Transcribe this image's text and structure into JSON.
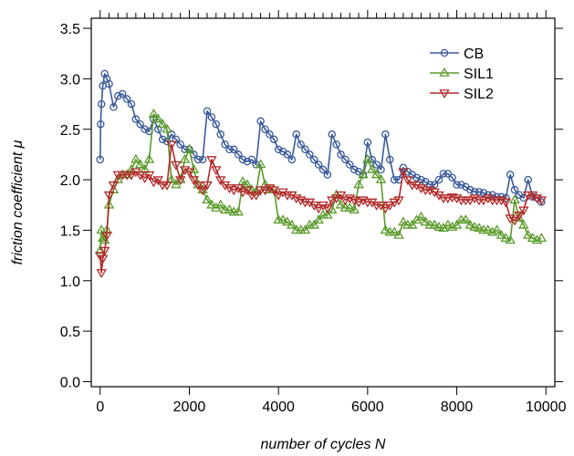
{
  "chart_data": {
    "type": "line",
    "xlabel": "number of cycles N",
    "ylabel": "friction coefficient  μ",
    "xlim": [
      -200,
      10200
    ],
    "ylim": [
      -0.05,
      3.6
    ],
    "xticks": [
      "0",
      "2000",
      "4000",
      "6000",
      "8000",
      "10000"
    ],
    "yticks": [
      "0.0",
      "0.5",
      "1.0",
      "1.5",
      "2.0",
      "2.5",
      "3.0",
      "3.5"
    ],
    "grid": false,
    "legend_position": "top-right",
    "series": [
      {
        "name": "CB",
        "color": "#3a5a9a",
        "marker": "circle",
        "points": [
          [
            0,
            2.2
          ],
          [
            10,
            2.55
          ],
          [
            30,
            2.75
          ],
          [
            60,
            2.93
          ],
          [
            100,
            3.05
          ],
          [
            150,
            3.0
          ],
          [
            200,
            2.95
          ],
          [
            300,
            2.72
          ],
          [
            400,
            2.83
          ],
          [
            500,
            2.85
          ],
          [
            600,
            2.8
          ],
          [
            700,
            2.75
          ],
          [
            800,
            2.6
          ],
          [
            900,
            2.55
          ],
          [
            1000,
            2.5
          ],
          [
            1100,
            2.48
          ],
          [
            1200,
            2.6
          ],
          [
            1300,
            2.5
          ],
          [
            1400,
            2.4
          ],
          [
            1500,
            2.38
          ],
          [
            1600,
            2.45
          ],
          [
            1700,
            2.4
          ],
          [
            1800,
            2.35
          ],
          [
            1900,
            2.3
          ],
          [
            2000,
            2.3
          ],
          [
            2100,
            2.25
          ],
          [
            2200,
            2.2
          ],
          [
            2300,
            2.2
          ],
          [
            2400,
            2.68
          ],
          [
            2500,
            2.62
          ],
          [
            2600,
            2.55
          ],
          [
            2700,
            2.45
          ],
          [
            2800,
            2.35
          ],
          [
            2900,
            2.3
          ],
          [
            3000,
            2.3
          ],
          [
            3100,
            2.25
          ],
          [
            3200,
            2.2
          ],
          [
            3300,
            2.18
          ],
          [
            3400,
            2.2
          ],
          [
            3500,
            2.15
          ],
          [
            3600,
            2.58
          ],
          [
            3700,
            2.5
          ],
          [
            3800,
            2.45
          ],
          [
            3900,
            2.4
          ],
          [
            4000,
            2.3
          ],
          [
            4100,
            2.28
          ],
          [
            4200,
            2.25
          ],
          [
            4300,
            2.2
          ],
          [
            4400,
            2.45
          ],
          [
            4500,
            2.35
          ],
          [
            4600,
            2.3
          ],
          [
            4700,
            2.25
          ],
          [
            4800,
            2.2
          ],
          [
            4900,
            2.15
          ],
          [
            5000,
            2.1
          ],
          [
            5100,
            2.05
          ],
          [
            5200,
            2.45
          ],
          [
            5300,
            2.35
          ],
          [
            5400,
            2.25
          ],
          [
            5500,
            2.2
          ],
          [
            5600,
            2.15
          ],
          [
            5700,
            2.1
          ],
          [
            5800,
            2.08
          ],
          [
            5900,
            2.05
          ],
          [
            6000,
            2.37
          ],
          [
            6100,
            2.2
          ],
          [
            6200,
            2.15
          ],
          [
            6300,
            2.1
          ],
          [
            6400,
            2.45
          ],
          [
            6500,
            2.2
          ],
          [
            6600,
            2.0
          ],
          [
            6700,
            2.0
          ],
          [
            6800,
            2.12
          ],
          [
            6900,
            2.08
          ],
          [
            7000,
            2.05
          ],
          [
            7100,
            2.02
          ],
          [
            7200,
            2.0
          ],
          [
            7300,
            1.98
          ],
          [
            7400,
            1.95
          ],
          [
            7500,
            1.95
          ],
          [
            7600,
            2.0
          ],
          [
            7700,
            2.06
          ],
          [
            7800,
            2.06
          ],
          [
            7900,
            2.02
          ],
          [
            8000,
            1.95
          ],
          [
            8100,
            1.95
          ],
          [
            8200,
            1.93
          ],
          [
            8300,
            1.9
          ],
          [
            8400,
            1.88
          ],
          [
            8500,
            1.88
          ],
          [
            8600,
            1.87
          ],
          [
            8700,
            1.85
          ],
          [
            8800,
            1.85
          ],
          [
            8900,
            1.83
          ],
          [
            9000,
            1.83
          ],
          [
            9100,
            1.82
          ],
          [
            9200,
            2.05
          ],
          [
            9300,
            1.9
          ],
          [
            9400,
            1.85
          ],
          [
            9500,
            1.82
          ],
          [
            9600,
            2.0
          ],
          [
            9700,
            1.83
          ],
          [
            9800,
            1.82
          ],
          [
            9900,
            1.78
          ]
        ]
      },
      {
        "name": "SIL1",
        "color": "#5a9a2a",
        "marker": "triangle-up",
        "points": [
          [
            0,
            1.3
          ],
          [
            30,
            1.5
          ],
          [
            60,
            1.42
          ],
          [
            100,
            1.4
          ],
          [
            150,
            1.5
          ],
          [
            200,
            1.75
          ],
          [
            300,
            1.9
          ],
          [
            400,
            2.0
          ],
          [
            500,
            2.05
          ],
          [
            600,
            2.05
          ],
          [
            700,
            2.1
          ],
          [
            800,
            2.2
          ],
          [
            900,
            2.15
          ],
          [
            1000,
            2.1
          ],
          [
            1100,
            2.2
          ],
          [
            1200,
            2.65
          ],
          [
            1300,
            2.6
          ],
          [
            1400,
            2.55
          ],
          [
            1500,
            2.5
          ],
          [
            1600,
            2.0
          ],
          [
            1700,
            1.95
          ],
          [
            1800,
            2.0
          ],
          [
            1900,
            2.2
          ],
          [
            2000,
            2.3
          ],
          [
            2100,
            2.1
          ],
          [
            2200,
            1.95
          ],
          [
            2300,
            1.9
          ],
          [
            2400,
            1.8
          ],
          [
            2500,
            1.75
          ],
          [
            2600,
            1.72
          ],
          [
            2700,
            1.75
          ],
          [
            2800,
            1.7
          ],
          [
            2900,
            1.7
          ],
          [
            3000,
            1.68
          ],
          [
            3100,
            1.68
          ],
          [
            3200,
            1.98
          ],
          [
            3300,
            1.95
          ],
          [
            3400,
            1.9
          ],
          [
            3500,
            1.88
          ],
          [
            3600,
            2.15
          ],
          [
            3700,
            1.95
          ],
          [
            3800,
            1.9
          ],
          [
            3900,
            1.9
          ],
          [
            4000,
            1.6
          ],
          [
            4100,
            1.6
          ],
          [
            4200,
            1.58
          ],
          [
            4300,
            1.55
          ],
          [
            4400,
            1.5
          ],
          [
            4500,
            1.5
          ],
          [
            4600,
            1.5
          ],
          [
            4700,
            1.55
          ],
          [
            4800,
            1.55
          ],
          [
            4900,
            1.6
          ],
          [
            5000,
            1.65
          ],
          [
            5100,
            1.65
          ],
          [
            5200,
            1.7
          ],
          [
            5300,
            1.85
          ],
          [
            5400,
            1.75
          ],
          [
            5500,
            1.72
          ],
          [
            5600,
            1.72
          ],
          [
            5700,
            1.7
          ],
          [
            5800,
            1.95
          ],
          [
            5900,
            2.05
          ],
          [
            6000,
            2.2
          ],
          [
            6100,
            2.1
          ],
          [
            6200,
            2.05
          ],
          [
            6300,
            2.0
          ],
          [
            6400,
            1.5
          ],
          [
            6500,
            1.48
          ],
          [
            6600,
            1.48
          ],
          [
            6700,
            1.45
          ],
          [
            6800,
            1.58
          ],
          [
            6900,
            1.55
          ],
          [
            7000,
            1.55
          ],
          [
            7100,
            1.6
          ],
          [
            7200,
            1.63
          ],
          [
            7300,
            1.58
          ],
          [
            7400,
            1.55
          ],
          [
            7500,
            1.55
          ],
          [
            7600,
            1.53
          ],
          [
            7700,
            1.52
          ],
          [
            7800,
            1.55
          ],
          [
            7900,
            1.53
          ],
          [
            8000,
            1.55
          ],
          [
            8100,
            1.6
          ],
          [
            8200,
            1.6
          ],
          [
            8300,
            1.55
          ],
          [
            8400,
            1.53
          ],
          [
            8500,
            1.52
          ],
          [
            8600,
            1.5
          ],
          [
            8700,
            1.5
          ],
          [
            8800,
            1.48
          ],
          [
            8900,
            1.5
          ],
          [
            9000,
            1.45
          ],
          [
            9100,
            1.42
          ],
          [
            9200,
            1.4
          ],
          [
            9300,
            1.8
          ],
          [
            9400,
            1.62
          ],
          [
            9500,
            1.55
          ],
          [
            9600,
            1.45
          ],
          [
            9700,
            1.42
          ],
          [
            9800,
            1.4
          ],
          [
            9900,
            1.42
          ]
        ]
      },
      {
        "name": "SIL2",
        "color": "#b22a2a",
        "marker": "triangle-down",
        "points": [
          [
            0,
            1.25
          ],
          [
            30,
            1.08
          ],
          [
            60,
            1.22
          ],
          [
            100,
            1.3
          ],
          [
            150,
            1.45
          ],
          [
            200,
            1.85
          ],
          [
            300,
            1.95
          ],
          [
            400,
            2.05
          ],
          [
            500,
            2.05
          ],
          [
            600,
            2.05
          ],
          [
            700,
            2.05
          ],
          [
            800,
            2.08
          ],
          [
            900,
            2.05
          ],
          [
            1000,
            2.02
          ],
          [
            1100,
            2.05
          ],
          [
            1200,
            1.98
          ],
          [
            1300,
            2.0
          ],
          [
            1400,
            1.95
          ],
          [
            1500,
            1.95
          ],
          [
            1600,
            2.35
          ],
          [
            1700,
            2.15
          ],
          [
            1800,
            2.0
          ],
          [
            1900,
            2.1
          ],
          [
            2000,
            2.08
          ],
          [
            2100,
            2.0
          ],
          [
            2200,
            1.95
          ],
          [
            2300,
            1.9
          ],
          [
            2400,
            1.95
          ],
          [
            2500,
            2.2
          ],
          [
            2600,
            2.1
          ],
          [
            2700,
            2.0
          ],
          [
            2800,
            1.95
          ],
          [
            2900,
            1.92
          ],
          [
            3000,
            1.9
          ],
          [
            3100,
            1.92
          ],
          [
            3200,
            1.88
          ],
          [
            3300,
            1.9
          ],
          [
            3400,
            1.85
          ],
          [
            3500,
            1.85
          ],
          [
            3600,
            1.9
          ],
          [
            3700,
            1.9
          ],
          [
            3800,
            1.92
          ],
          [
            3900,
            1.9
          ],
          [
            4000,
            1.85
          ],
          [
            4100,
            1.88
          ],
          [
            4200,
            1.85
          ],
          [
            4300,
            1.85
          ],
          [
            4400,
            1.82
          ],
          [
            4500,
            1.8
          ],
          [
            4600,
            1.78
          ],
          [
            4700,
            1.78
          ],
          [
            4800,
            1.75
          ],
          [
            4900,
            1.72
          ],
          [
            5000,
            1.75
          ],
          [
            5100,
            1.72
          ],
          [
            5200,
            1.8
          ],
          [
            5300,
            1.82
          ],
          [
            5400,
            1.85
          ],
          [
            5500,
            1.8
          ],
          [
            5600,
            1.82
          ],
          [
            5700,
            1.8
          ],
          [
            5800,
            1.78
          ],
          [
            5900,
            1.8
          ],
          [
            6000,
            1.78
          ],
          [
            6100,
            1.78
          ],
          [
            6200,
            1.75
          ],
          [
            6300,
            1.75
          ],
          [
            6400,
            1.72
          ],
          [
            6500,
            1.75
          ],
          [
            6600,
            1.78
          ],
          [
            6700,
            1.8
          ],
          [
            6800,
            2.08
          ],
          [
            6900,
            2.0
          ],
          [
            7000,
            1.95
          ],
          [
            7100,
            1.95
          ],
          [
            7200,
            1.92
          ],
          [
            7300,
            1.9
          ],
          [
            7400,
            1.9
          ],
          [
            7500,
            1.88
          ],
          [
            7600,
            1.85
          ],
          [
            7700,
            1.82
          ],
          [
            7800,
            1.82
          ],
          [
            7900,
            1.83
          ],
          [
            8000,
            1.82
          ],
          [
            8100,
            1.8
          ],
          [
            8200,
            1.8
          ],
          [
            8300,
            1.8
          ],
          [
            8400,
            1.82
          ],
          [
            8500,
            1.8
          ],
          [
            8600,
            1.8
          ],
          [
            8700,
            1.82
          ],
          [
            8800,
            1.8
          ],
          [
            8900,
            1.8
          ],
          [
            9000,
            1.8
          ],
          [
            9100,
            1.78
          ],
          [
            9200,
            1.62
          ],
          [
            9300,
            1.6
          ],
          [
            9400,
            1.65
          ],
          [
            9500,
            1.7
          ],
          [
            9600,
            1.85
          ],
          [
            9700,
            1.85
          ],
          [
            9800,
            1.82
          ],
          [
            9900,
            1.8
          ]
        ]
      }
    ]
  }
}
